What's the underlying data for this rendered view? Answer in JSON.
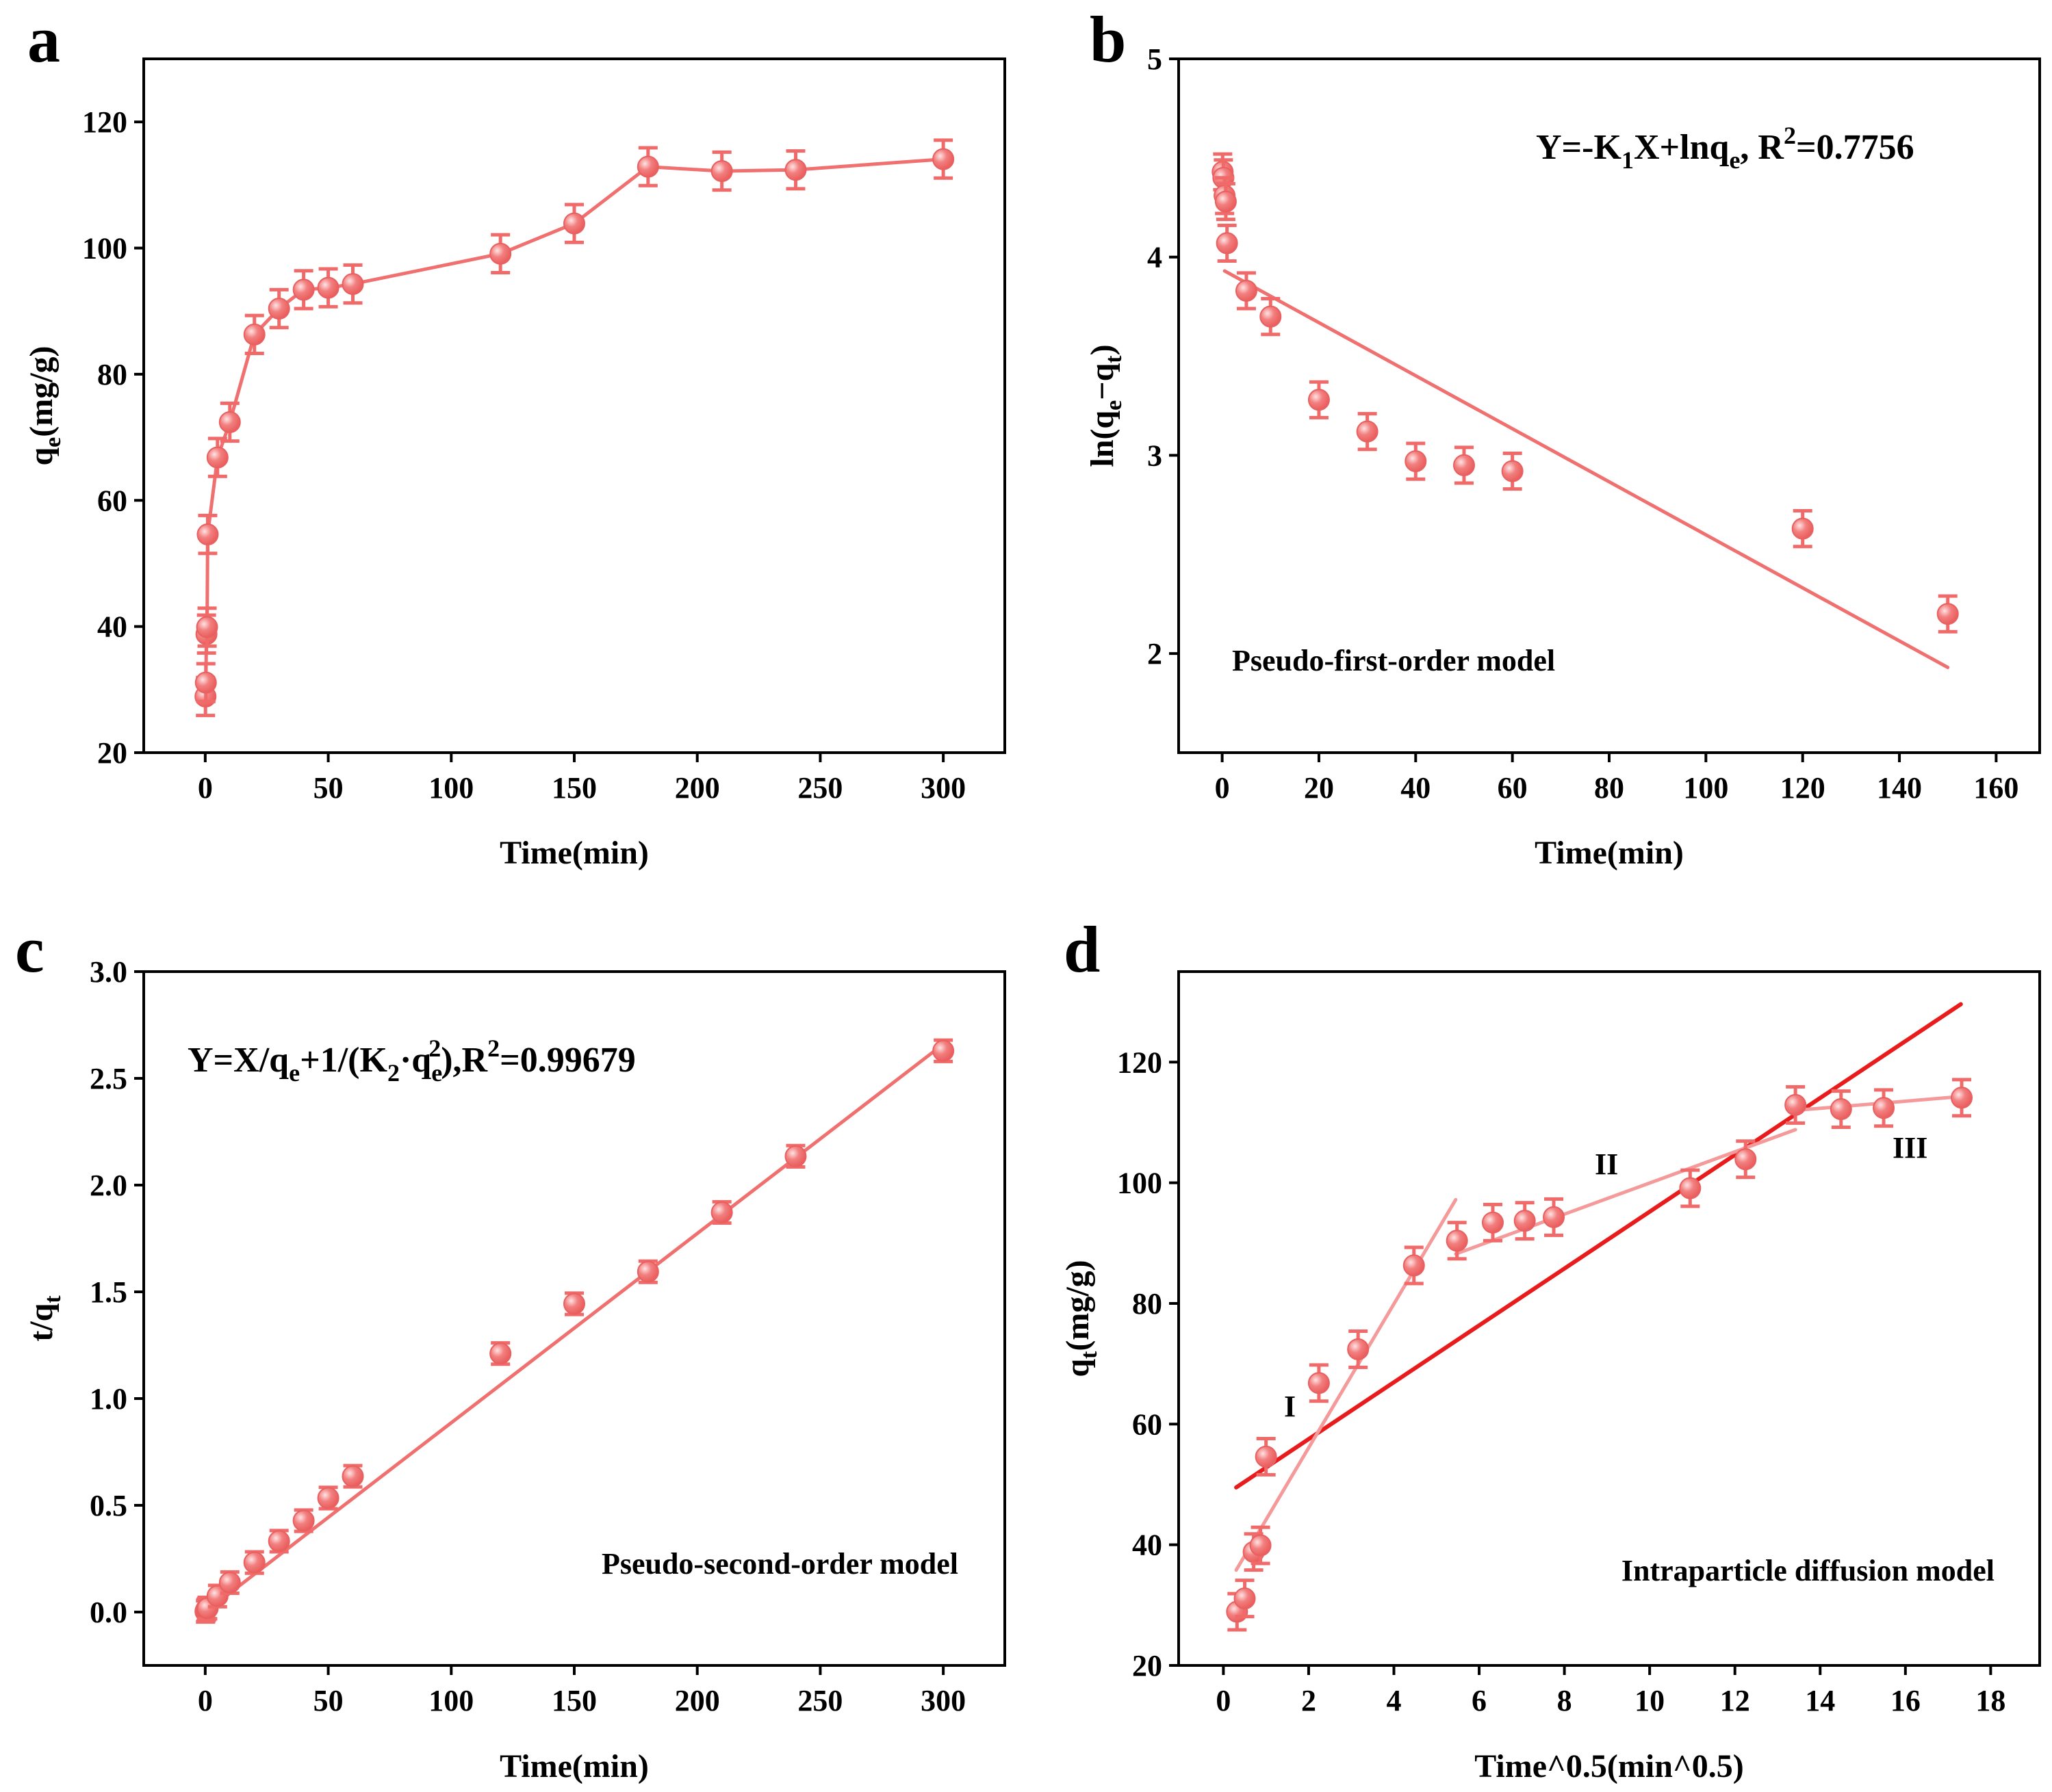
{
  "figure": {
    "colors": {
      "marker": "#f06a6a",
      "marker_highlight": "#ffd6d6",
      "line": "#f07070",
      "fit_light": "#f59a9a",
      "fit_red": "#e81c1c",
      "axis": "#000000"
    }
  },
  "chart_data": [
    {
      "panel": "a",
      "type": "line",
      "title": "",
      "xlabel": "Time(min)",
      "ylabel_main": "q",
      "ylabel_sub": "e",
      "ylabel_tail": "(mg/g)",
      "xlim": [
        -25,
        325
      ],
      "ylim": [
        20,
        130
      ],
      "xticks": [
        0,
        50,
        100,
        150,
        200,
        250,
        300
      ],
      "yticks": [
        20,
        40,
        60,
        80,
        100,
        120
      ],
      "x": [
        0.1,
        0.25,
        0.5,
        0.75,
        1,
        5,
        10,
        20,
        30,
        40,
        50,
        60,
        120,
        150,
        180,
        210,
        240,
        300
      ],
      "y": [
        28.9,
        31.1,
        38.8,
        39.9,
        54.6,
        66.8,
        72.4,
        86.3,
        90.4,
        93.4,
        93.7,
        94.3,
        99.1,
        103.9,
        112.9,
        112.2,
        112.4,
        114.1
      ],
      "yerr": 3,
      "annotations": []
    },
    {
      "panel": "b",
      "type": "scatter",
      "title": "",
      "xlabel": "Time(min)",
      "ylabel": "ln(qe−qt)",
      "xlim": [
        -9,
        169
      ],
      "ylim": [
        1.5,
        5
      ],
      "xticks": [
        0,
        20,
        40,
        60,
        80,
        100,
        120,
        140,
        160
      ],
      "yticks": [
        2,
        3,
        4,
        5
      ],
      "x": [
        0.1,
        0.25,
        0.5,
        0.75,
        1,
        5,
        10,
        20,
        30,
        40,
        50,
        60,
        120,
        150
      ],
      "y": [
        4.43,
        4.4,
        4.31,
        4.28,
        4.07,
        3.83,
        3.7,
        3.28,
        3.12,
        2.97,
        2.95,
        2.92,
        2.63,
        2.2
      ],
      "yerr": 0.09,
      "fit": {
        "x": [
          0.5,
          150
        ],
        "y": [
          3.93,
          1.93
        ]
      },
      "equation": {
        "p1": "Y=-K",
        "s1": "1",
        "p2": "X+lnq",
        "s2": "e",
        "p3": ", R",
        "sup": "2",
        "p4": "=0.7756"
      },
      "annotations": [
        "Pseudo-first-order model"
      ]
    },
    {
      "panel": "c",
      "type": "scatter",
      "title": "",
      "xlabel": "Time(min)",
      "ylabel": "t/qt",
      "xlim": [
        -25,
        325
      ],
      "ylim": [
        -0.25,
        3.0
      ],
      "xticks": [
        0,
        50,
        100,
        150,
        200,
        250,
        300
      ],
      "yticks": [
        0.0,
        0.5,
        1.0,
        1.5,
        2.0,
        2.5,
        3.0
      ],
      "yticklabels": [
        "0.0",
        "0.5",
        "1.0",
        "1.5",
        "2.0",
        "2.5",
        "3.0"
      ],
      "x": [
        0.1,
        0.25,
        0.5,
        0.75,
        1,
        5,
        10,
        20,
        30,
        40,
        50,
        60,
        120,
        150,
        180,
        210,
        240,
        300
      ],
      "y": [
        0.003,
        0.008,
        0.013,
        0.019,
        0.018,
        0.075,
        0.138,
        0.232,
        0.332,
        0.428,
        0.534,
        0.636,
        1.211,
        1.444,
        1.594,
        1.872,
        2.135,
        2.629
      ],
      "yerr": 0.05,
      "fit": {
        "x": [
          0,
          300
        ],
        "y": [
          0.0,
          2.66
        ]
      },
      "equation": {
        "p1": "Y=X/q",
        "s1": "e",
        "p2": "+1/(K",
        "s2": "2",
        "p3": "·q",
        "s3": "e",
        "sup": "2",
        "p4": "),R",
        "sup2": "2",
        "p5": "=0.99679"
      },
      "annotations": [
        "Pseudo-second-order model"
      ]
    },
    {
      "panel": "d",
      "type": "scatter",
      "title": "",
      "xlabel": "Time^0.5(min^0.5)",
      "ylabel_main": "q",
      "ylabel_sub": "t",
      "ylabel_tail": "(mg/g)",
      "xlim": [
        -1.05,
        19.15
      ],
      "ylim": [
        20,
        135
      ],
      "xticks": [
        0,
        2,
        4,
        6,
        8,
        10,
        12,
        14,
        16,
        18
      ],
      "yticks": [
        20,
        40,
        60,
        80,
        100,
        120
      ],
      "x": [
        0.32,
        0.5,
        0.71,
        0.87,
        1.0,
        2.24,
        3.16,
        4.47,
        5.48,
        6.32,
        7.07,
        7.75,
        10.95,
        12.25,
        13.42,
        14.49,
        15.49,
        17.32
      ],
      "y": [
        28.9,
        31.1,
        38.8,
        39.9,
        54.6,
        66.8,
        72.4,
        86.3,
        90.4,
        93.4,
        93.7,
        94.3,
        99.1,
        103.9,
        112.9,
        112.2,
        112.4,
        114.1
      ],
      "yerr": 3,
      "fits": [
        {
          "name": "overall",
          "x": [
            0.3,
            17.3
          ],
          "y": [
            49.5,
            129.6
          ]
        },
        {
          "name": "I",
          "x": [
            0.3,
            5.45
          ],
          "y": [
            35.8,
            97.2
          ]
        },
        {
          "name": "II",
          "x": [
            5.45,
            13.42
          ],
          "y": [
            88.2,
            108.8
          ]
        },
        {
          "name": "III",
          "x": [
            13.42,
            17.32
          ],
          "y": [
            112.0,
            114.3
          ]
        }
      ],
      "annotations": [
        "I",
        "II",
        "III",
        "Intraparticle diffusion model"
      ]
    }
  ]
}
